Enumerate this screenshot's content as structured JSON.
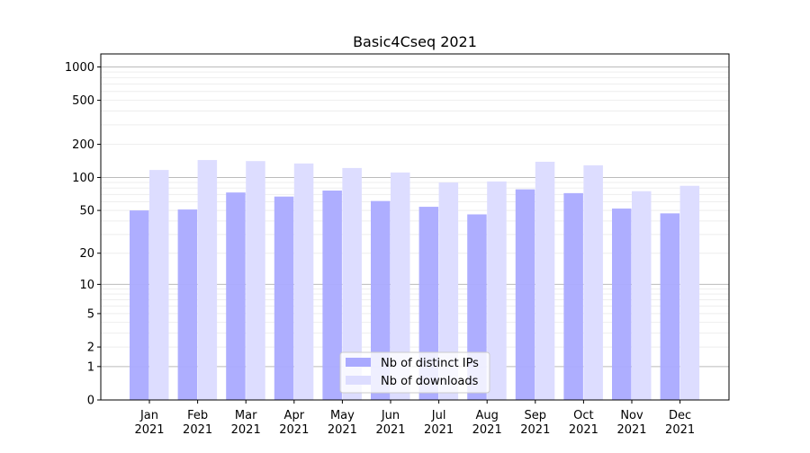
{
  "chart_data": {
    "type": "bar",
    "title": "Basic4Cseq 2021",
    "xlabel": "",
    "ylabel": "",
    "yscale": "log(1+y)",
    "ylim": [
      0,
      1300
    ],
    "yticks": [
      0,
      1,
      2,
      5,
      10,
      20,
      50,
      100,
      200,
      500,
      1000
    ],
    "ytick_labels": [
      "0",
      "1",
      "2",
      "5",
      "10",
      "20",
      "50",
      "100",
      "200",
      "500",
      "1000"
    ],
    "categories": [
      "Jan\n2021",
      "Feb\n2021",
      "Mar\n2021",
      "Apr\n2021",
      "May\n2021",
      "Jun\n2021",
      "Jul\n2021",
      "Aug\n2021",
      "Sep\n2021",
      "Oct\n2021",
      "Nov\n2021",
      "Dec\n2021"
    ],
    "grid": true,
    "legend_position": "bottom-center",
    "series": [
      {
        "name": "Nb of distinct IPs",
        "color": "#aaaaff",
        "values": [
          50,
          51,
          73,
          67,
          76,
          61,
          54,
          46,
          78,
          72,
          52,
          47
        ]
      },
      {
        "name": "Nb of downloads",
        "color": "#ddddff",
        "values": [
          117,
          144,
          141,
          134,
          122,
          111,
          90,
          92,
          139,
          129,
          75,
          84
        ]
      }
    ]
  }
}
